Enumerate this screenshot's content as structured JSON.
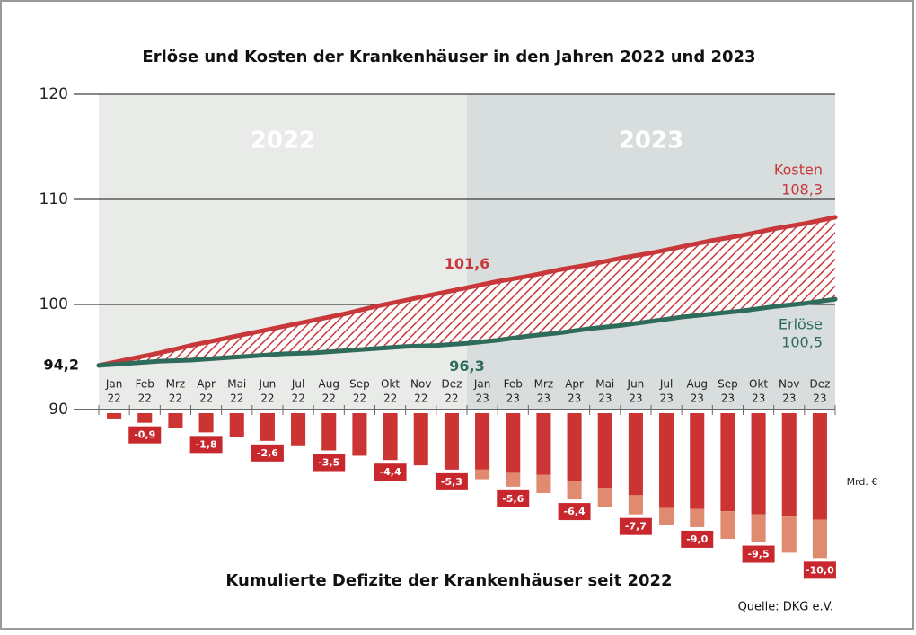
{
  "chart_data": [
    {
      "type": "line",
      "title": "Erlöse und Kosten der Krankenhäuser in den Jahren 2022 und 2023",
      "categories": [
        [
          "Jan",
          "22"
        ],
        [
          "Feb",
          "22"
        ],
        [
          "Mrz",
          "22"
        ],
        [
          "Apr",
          "22"
        ],
        [
          "Mai",
          "22"
        ],
        [
          "Jun",
          "22"
        ],
        [
          "Jul",
          "22"
        ],
        [
          "Aug",
          "22"
        ],
        [
          "Sep",
          "22"
        ],
        [
          "Okt",
          "22"
        ],
        [
          "Nov",
          "22"
        ],
        [
          "Dez",
          "22"
        ],
        [
          "Jan",
          "23"
        ],
        [
          "Feb",
          "23"
        ],
        [
          "Mrz",
          "23"
        ],
        [
          "Apr",
          "23"
        ],
        [
          "Mai",
          "23"
        ],
        [
          "Jun",
          "23"
        ],
        [
          "Jul",
          "23"
        ],
        [
          "Aug",
          "23"
        ],
        [
          "Sep",
          "23"
        ],
        [
          "Okt",
          "23"
        ],
        [
          "Nov",
          "23"
        ],
        [
          "Dez",
          "23"
        ]
      ],
      "periods": [
        "2022",
        "2023"
      ],
      "start": 94.2,
      "start_label": "94,2",
      "series": [
        {
          "name": "Kosten",
          "color": "#c8373a",
          "values": [
            94.8,
            95.4,
            96.1,
            96.7,
            97.3,
            97.9,
            98.5,
            99.1,
            99.8,
            100.4,
            101.0,
            101.6,
            102.2,
            102.7,
            103.3,
            103.8,
            104.4,
            104.9,
            105.5,
            106.1,
            106.6,
            107.2,
            107.7,
            108.3
          ],
          "value_labels": [
            null,
            null,
            null,
            null,
            null,
            null,
            null,
            null,
            null,
            null,
            null,
            "101,6",
            null,
            null,
            null,
            null,
            null,
            null,
            null,
            null,
            null,
            null,
            null,
            "108,3"
          ]
        },
        {
          "name": "Erlöse",
          "color": "#2e6b5a",
          "values": [
            94.4,
            94.6,
            94.7,
            94.9,
            95.1,
            95.3,
            95.4,
            95.6,
            95.8,
            96.0,
            96.1,
            96.3,
            96.6,
            97.0,
            97.3,
            97.7,
            98.0,
            98.4,
            98.8,
            99.1,
            99.4,
            99.8,
            100.1,
            100.5
          ],
          "value_labels": [
            null,
            null,
            null,
            null,
            null,
            null,
            null,
            null,
            null,
            null,
            null,
            "96,3",
            null,
            null,
            null,
            null,
            null,
            null,
            null,
            null,
            null,
            null,
            null,
            "100,5"
          ]
        }
      ],
      "ylim": [
        90,
        120
      ],
      "yticks": [
        90,
        100,
        110,
        120
      ],
      "grid": true
    },
    {
      "type": "bar",
      "title": "Kumulierte Defizite der Krankenhäuser seit 2022",
      "unit": "Mrd. €",
      "source": "Quelle: DKG e.V.",
      "ylim": [
        -14.5,
        0
      ],
      "series": [
        {
          "color": "#cc3333",
          "values": [
            -0.5,
            -0.9,
            -1.4,
            -1.8,
            -2.2,
            -2.6,
            -3.1,
            -3.5,
            -4.0,
            -4.4,
            -4.9,
            -5.3,
            -5.3,
            -5.6,
            -5.8,
            -6.4,
            -7.0,
            -7.7,
            -8.9,
            -9.0,
            -9.2,
            -9.5,
            -9.7,
            -10.0
          ],
          "value_labels": [
            null,
            "-0,9",
            null,
            "-1,8",
            null,
            "-2,6",
            null,
            "-3,5",
            null,
            "-4,4",
            null,
            "-5,3",
            null,
            "-5,6",
            null,
            "-6,4",
            null,
            "-7,7",
            null,
            "-9,0",
            null,
            "-9,5",
            null,
            "-10,0"
          ]
        },
        {
          "color": "#e08a70",
          "values": [
            null,
            null,
            null,
            null,
            null,
            null,
            null,
            null,
            null,
            null,
            null,
            null,
            -0.9,
            -1.3,
            -1.7,
            -1.7,
            -1.8,
            -1.8,
            -1.6,
            -1.7,
            -2.6,
            -2.6,
            -3.4,
            -3.6
          ]
        }
      ]
    }
  ]
}
